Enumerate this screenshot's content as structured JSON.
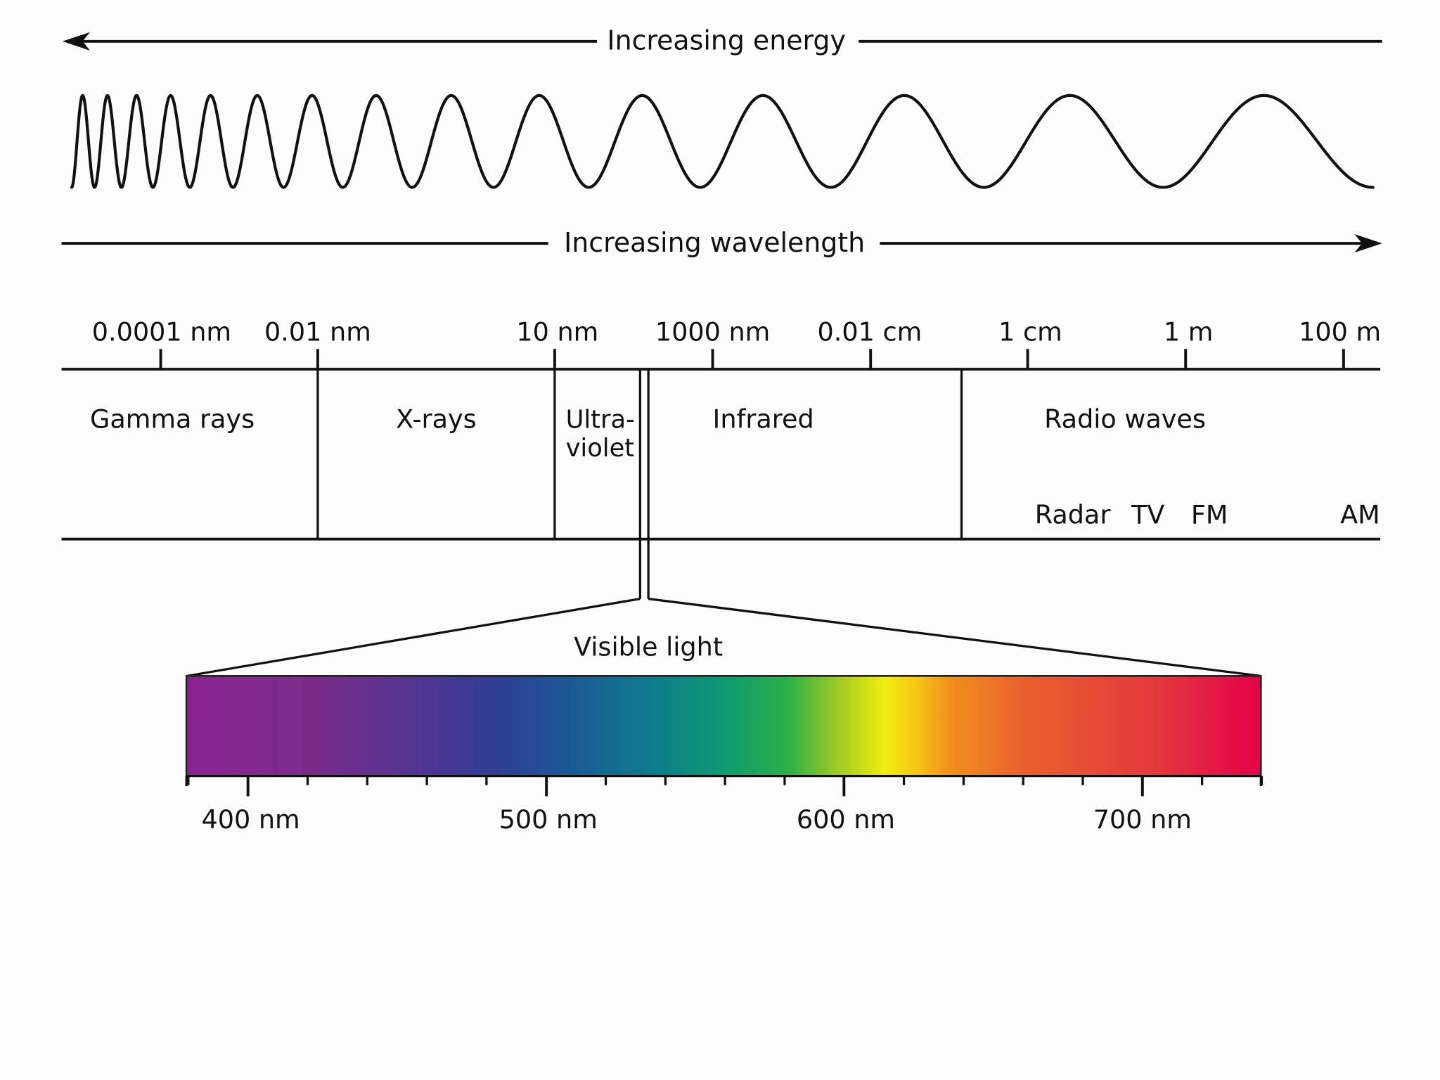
{
  "arrows": {
    "energy": "Increasing energy",
    "wavelength": "Increasing wavelength"
  },
  "scale_ticks": [
    "0.0001 nm",
    "0.01 nm",
    "10 nm",
    "1000 nm",
    "0.01 cm",
    "1 cm",
    "1 m",
    "100 m"
  ],
  "bands": {
    "gamma": "Gamma rays",
    "xray": "X-rays",
    "uv_line1": "Ultra-",
    "uv_line2": "violet",
    "infrared": "Infrared",
    "radio": "Radio waves"
  },
  "radio_sub": [
    "Radar",
    "TV",
    "FM",
    "AM"
  ],
  "visible": {
    "title": "Visible light",
    "ticks": [
      "400 nm",
      "500 nm",
      "600 nm",
      "700 nm"
    ],
    "gradient": [
      {
        "offset": 0.0,
        "color": "#8a2391"
      },
      {
        "offset": 0.12,
        "color": "#7a2b8a"
      },
      {
        "offset": 0.22,
        "color": "#4f3592"
      },
      {
        "offset": 0.29,
        "color": "#2f3e94"
      },
      {
        "offset": 0.36,
        "color": "#1a5a96"
      },
      {
        "offset": 0.44,
        "color": "#0d7f8c"
      },
      {
        "offset": 0.5,
        "color": "#0d9a70"
      },
      {
        "offset": 0.56,
        "color": "#2db048"
      },
      {
        "offset": 0.61,
        "color": "#a8cd22"
      },
      {
        "offset": 0.65,
        "color": "#f0ee0f"
      },
      {
        "offset": 0.68,
        "color": "#f7c414"
      },
      {
        "offset": 0.71,
        "color": "#f2901f"
      },
      {
        "offset": 0.78,
        "color": "#e9602e"
      },
      {
        "offset": 0.9,
        "color": "#e33a3c"
      },
      {
        "offset": 1.0,
        "color": "#e4004a"
      }
    ]
  }
}
